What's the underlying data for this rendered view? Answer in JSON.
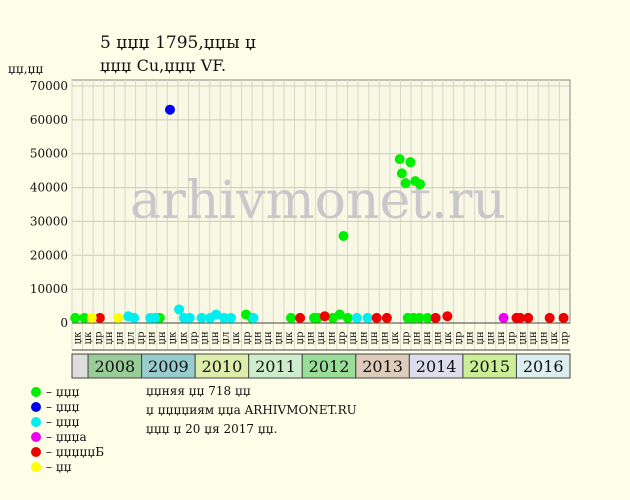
{
  "chart_data": {
    "type": "scatter",
    "title": "5 џџџ 1795,џџы џ",
    "subtitle": "џџџ Cu,џџџ VF.",
    "y_label": "џџ,џџ",
    "watermark": "arhivmonet.ru",
    "xlim": [
      2007.7,
      2017.0
    ],
    "ylim": [
      0,
      70000
    ],
    "yticks": [
      0,
      10000,
      20000,
      30000,
      40000,
      50000,
      60000,
      70000
    ],
    "grid": true,
    "years": [
      "2008",
      "2009",
      "2010",
      "2011",
      "2012",
      "2013",
      "2014",
      "2015",
      "2016"
    ],
    "year_colors": [
      "#99cc99",
      "#99cccc",
      "#ddeeaa",
      "#cceecc",
      "#99dd99",
      "#ddccbb",
      "#ddddee",
      "#ccee99",
      "#ddeeee"
    ],
    "month_labels": [
      "џк",
      "џк",
      "џр",
      "џн",
      "џн",
      "џл",
      "џр",
      "џн",
      "џн",
      "џк",
      "џк",
      "џр",
      "џн",
      "џн",
      "џл",
      "џк",
      "џр",
      "џн",
      "џн",
      "џн",
      "џк",
      "џр",
      "џн",
      "џн",
      "џн",
      "џр",
      "џн",
      "џн",
      "џн",
      "џн",
      "џк",
      "џр",
      "џн",
      "џн",
      "џн",
      "џк",
      "џр",
      "џн",
      "џн",
      "џн",
      "џн",
      "џр",
      "џн",
      "џн",
      "џн",
      "џк",
      "џр"
    ],
    "series": [
      {
        "name": "– џџџ",
        "color": "#00ee00",
        "x": [
          2007.76,
          2007.93,
          2009.34,
          2010.95,
          2011.06,
          2011.79,
          2012.22,
          2012.29,
          2012.57,
          2012.7,
          2012.77,
          2012.85,
          2013.82,
          2013.86,
          2013.93,
          2014.02,
          2014.11,
          2014.2,
          2013.97,
          2014.08,
          2014.19,
          2014.34
        ],
        "values": [
          1500,
          1500,
          1500,
          2500,
          1500,
          1500,
          1500,
          1500,
          1500,
          2500,
          25700,
          1500,
          48400,
          44200,
          41300,
          47500,
          41900,
          41000,
          1500,
          1500,
          1500,
          1500
        ]
      },
      {
        "name": "– џџџ",
        "color": "#0000ee",
        "x": [
          2009.53
        ],
        "values": [
          63000
        ]
      },
      {
        "name": "– џџџ",
        "color": "#00eeee",
        "x": [
          2008.75,
          2008.86,
          2009.16,
          2009.25,
          2009.7,
          2009.79,
          2009.9,
          2010.12,
          2010.28,
          2010.39,
          2010.54,
          2010.67,
          2011.09,
          2013.02,
          2013.22
        ],
        "values": [
          2000,
          1500,
          1500,
          1500,
          4000,
          1500,
          1500,
          1500,
          1500,
          2500,
          1500,
          1500,
          1500,
          1500,
          1500
        ]
      },
      {
        "name": "– џџџа",
        "color": "#ee00ee",
        "x": [
          2015.76
        ],
        "values": [
          1500
        ]
      },
      {
        "name": "– џџџџџБ",
        "color": "#ee0000",
        "x": [
          2008.22,
          2011.96,
          2012.42,
          2013.39,
          2013.58,
          2014.49,
          2014.71,
          2016.0,
          2016.07,
          2016.22,
          2016.62,
          2016.88
        ],
        "values": [
          1500,
          1500,
          2000,
          1500,
          1500,
          1500,
          2000,
          1500,
          1500,
          1500,
          1500,
          1500
        ]
      },
      {
        "name": "– џџ",
        "color": "#ffff00",
        "x": [
          2008.07,
          2008.56
        ],
        "values": [
          1500,
          1500
        ]
      }
    ],
    "notes": [
      "џџняя џџ 718 џџ",
      "џ џџџџиям џџа ARHIVMONET.RU",
      "џџџ џ 20 џя 2017 џџ."
    ]
  }
}
